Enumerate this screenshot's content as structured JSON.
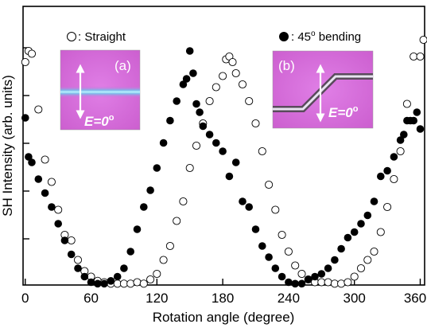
{
  "chart_data": {
    "type": "scatter",
    "xlabel": "Rotation angle (degree)",
    "ylabel": "SH Intensity (arb. units)",
    "xlim": [
      -2,
      364
    ],
    "ylim": [
      0,
      1.0
    ],
    "xticks": [
      0,
      60,
      120,
      180,
      240,
      300,
      360
    ],
    "yticks_labeled": false,
    "grid": false,
    "legend": [
      {
        "marker": "open-circle",
        "text": ": Straight",
        "placement": "top-left"
      },
      {
        "marker": "filled-circle",
        "text": ": 45",
        "superscript": "o",
        "text_after": " bending",
        "placement": "top-right"
      }
    ],
    "insets": [
      {
        "label": "(a)",
        "field": "E=0",
        "field_superscript": "o",
        "kind": "straight waveguide"
      },
      {
        "label": "(b)",
        "field": "E=0",
        "field_superscript": "o",
        "kind": "45 degree bend waveguide"
      }
    ],
    "series": [
      {
        "marker": "open-circle",
        "x": [
          0,
          3,
          6,
          12,
          18,
          24,
          30,
          36,
          42,
          48,
          54,
          60,
          66,
          72,
          78,
          84,
          90,
          96,
          102,
          108,
          114,
          120,
          126,
          132,
          138,
          144,
          150,
          156,
          162,
          168,
          174,
          180,
          183,
          186,
          189,
          192,
          198,
          204,
          210,
          216,
          222,
          228,
          234,
          240,
          246,
          252,
          258,
          264,
          270,
          276,
          282,
          288,
          294,
          300,
          306,
          312,
          318,
          324,
          330,
          336,
          342,
          348,
          354,
          360,
          363
        ],
        "y": [
          0.8,
          0.84,
          0.83,
          0.63,
          0.45,
          0.37,
          0.27,
          0.18,
          0.16,
          0.09,
          0.05,
          0.03,
          0.015,
          0.01,
          0.005,
          0.005,
          0.005,
          0.005,
          0.01,
          0.005,
          0.02,
          0.04,
          0.09,
          0.14,
          0.23,
          0.3,
          0.42,
          0.5,
          0.58,
          0.66,
          0.71,
          0.75,
          0.81,
          0.82,
          0.8,
          0.76,
          0.72,
          0.66,
          0.58,
          0.48,
          0.36,
          0.27,
          0.18,
          0.12,
          0.07,
          0.04,
          0.02,
          0.01,
          0.01,
          0.01,
          0.005,
          0.005,
          0.01,
          0.03,
          0.06,
          0.09,
          0.12,
          0.19,
          0.28,
          0.38,
          0.48,
          0.65,
          0.82,
          0.82,
          0.88
        ]
      },
      {
        "marker": "filled-circle",
        "x": [
          0,
          3,
          6,
          12,
          18,
          24,
          30,
          36,
          42,
          48,
          54,
          60,
          66,
          72,
          78,
          84,
          90,
          96,
          102,
          108,
          114,
          120,
          126,
          132,
          138,
          144,
          147,
          150,
          153,
          156,
          159,
          162,
          168,
          174,
          180,
          186,
          192,
          198,
          204,
          210,
          216,
          222,
          228,
          234,
          240,
          246,
          252,
          258,
          264,
          270,
          276,
          282,
          288,
          294,
          300,
          306,
          312,
          318,
          324,
          330,
          336,
          342,
          345,
          348,
          351,
          354,
          357,
          360
        ],
        "y": [
          0.6,
          0.46,
          0.44,
          0.38,
          0.33,
          0.28,
          0.22,
          0.16,
          0.11,
          0.06,
          0.03,
          0.01,
          0.005,
          0.005,
          0.015,
          0.03,
          0.06,
          0.12,
          0.2,
          0.28,
          0.34,
          0.42,
          0.51,
          0.59,
          0.66,
          0.72,
          0.74,
          0.84,
          0.76,
          0.65,
          0.62,
          0.57,
          0.54,
          0.51,
          0.48,
          0.39,
          0.44,
          0.3,
          0.28,
          0.2,
          0.14,
          0.1,
          0.06,
          0.03,
          0.01,
          0.005,
          0.005,
          0.02,
          0.03,
          0.04,
          0.06,
          0.09,
          0.13,
          0.17,
          0.19,
          0.22,
          0.25,
          0.3,
          0.39,
          0.41,
          0.46,
          0.52,
          0.54,
          0.59,
          0.59,
          0.59,
          0.62,
          0.56
        ]
      }
    ]
  }
}
